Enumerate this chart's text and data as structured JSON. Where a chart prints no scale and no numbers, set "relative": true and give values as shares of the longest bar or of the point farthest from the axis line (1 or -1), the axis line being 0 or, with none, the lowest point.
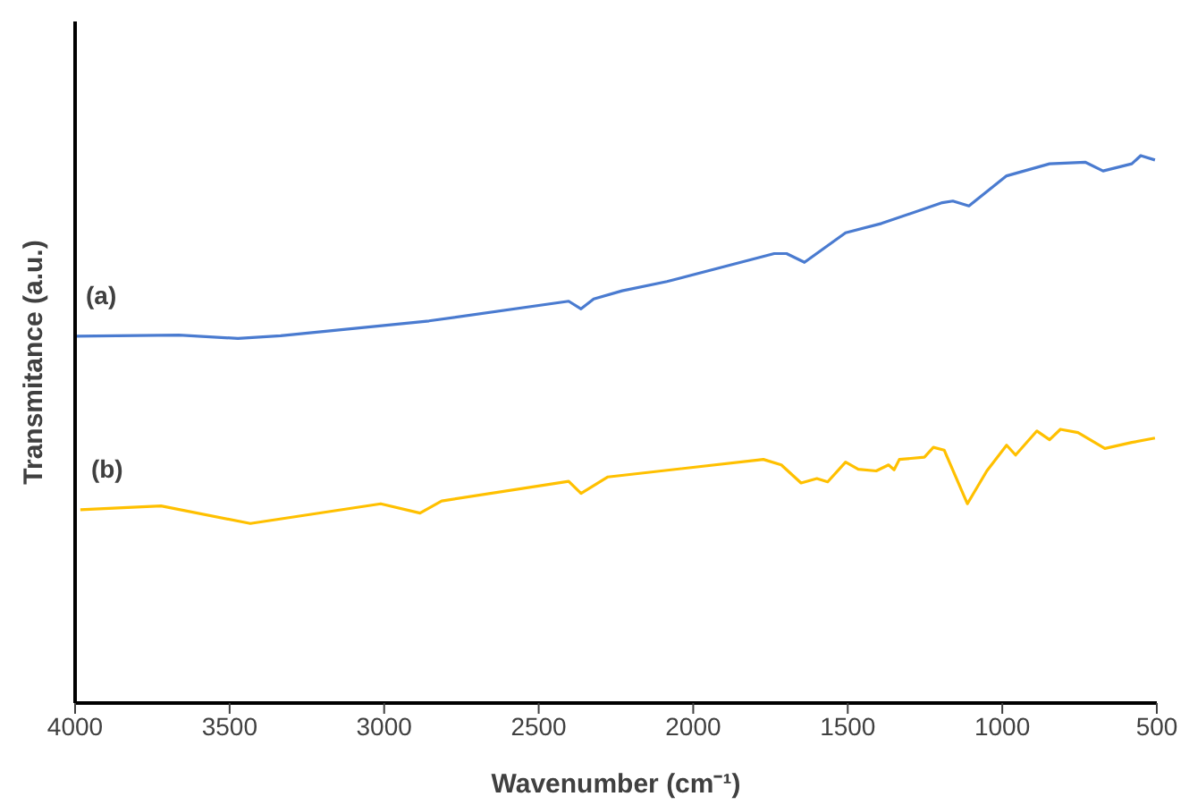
{
  "chart_data": {
    "type": "line",
    "xlabel": "Wavenumber (cm⁻¹)",
    "ylabel": "Transmitance (a.u.)",
    "relative": true,
    "xlim": [
      4000,
      500
    ],
    "xticks": [
      4000,
      3500,
      3000,
      2500,
      2000,
      1500,
      1000,
      500
    ],
    "marker": "none",
    "line_style": "solid",
    "series": [
      {
        "name": "(a)",
        "color": "#4a7bd0",
        "x": [
          4000,
          3664,
          3473,
          3335,
          2855,
          2403,
          2363,
          2322,
          2230,
          2085,
          1738,
          1698,
          1640,
          1507,
          1391,
          1194,
          1160,
          1108,
          986,
          847,
          732,
          674,
          581,
          552,
          506
        ],
        "values": [
          0.67,
          0.672,
          0.666,
          0.671,
          0.698,
          0.734,
          0.72,
          0.738,
          0.753,
          0.77,
          0.821,
          0.821,
          0.805,
          0.859,
          0.876,
          0.914,
          0.917,
          0.908,
          0.963,
          0.985,
          0.988,
          0.972,
          0.985,
          1,
          0.992
        ]
      },
      {
        "name": "(b)",
        "color": "#ffc000",
        "x": [
          3983,
          3722,
          3433,
          3011,
          2884,
          2814,
          2403,
          2363,
          2276,
          1773,
          1715,
          1651,
          1600,
          1565,
          1507,
          1466,
          1408,
          1368,
          1350,
          1333,
          1252,
          1223,
          1188,
          1113,
          1050,
          986,
          957,
          888,
          847,
          812,
          755,
          668,
          581,
          506
        ],
        "values": [
          0.353,
          0.36,
          0.328,
          0.364,
          0.347,
          0.369,
          0.405,
          0.383,
          0.413,
          0.445,
          0.435,
          0.402,
          0.41,
          0.404,
          0.44,
          0.427,
          0.424,
          0.435,
          0.426,
          0.445,
          0.449,
          0.467,
          0.462,
          0.364,
          0.424,
          0.471,
          0.453,
          0.497,
          0.481,
          0.5,
          0.494,
          0.465,
          0.476,
          0.484
        ]
      }
    ]
  }
}
